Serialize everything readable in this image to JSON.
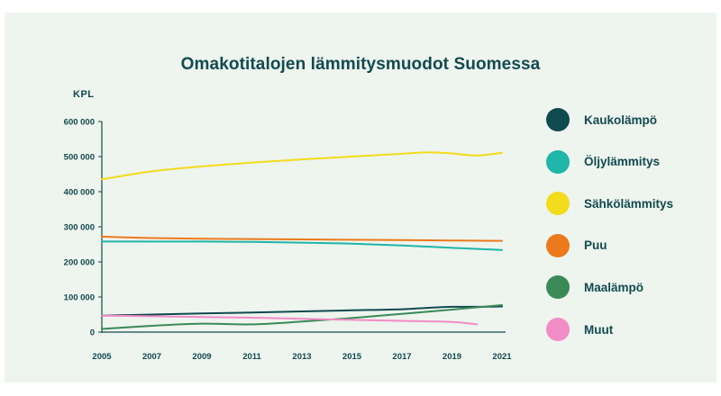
{
  "chart_data": {
    "type": "line",
    "title": "Omakotitalojen lämmitysmuodot Suomessa",
    "xlabel": "",
    "ylabel": "KPL",
    "xlim": [
      2005,
      2021
    ],
    "ylim": [
      0,
      600000
    ],
    "x_ticks": [
      "2005",
      "2007",
      "2009",
      "2011",
      "2013",
      "2015",
      "2017",
      "2019",
      "2021"
    ],
    "y_ticks": [
      "0",
      "100 000",
      "200 000",
      "300 000",
      "400 000",
      "500 000",
      "600 000"
    ],
    "y_tick_values": [
      0,
      100000,
      200000,
      300000,
      400000,
      500000,
      600000
    ],
    "grid": false,
    "legend_position": "right",
    "series": [
      {
        "name": "Kaukolämpö",
        "color": "#0f4a4f",
        "x": [
          2005,
          2007,
          2009,
          2011,
          2013,
          2015,
          2017,
          2018,
          2019,
          2020,
          2021
        ],
        "y": [
          47000,
          50000,
          53000,
          56000,
          59000,
          62000,
          65000,
          69000,
          72000,
          72000,
          73000
        ]
      },
      {
        "name": "Öljylämmitys",
        "color": "#1fb5a8",
        "x": [
          2005,
          2007,
          2009,
          2011,
          2013,
          2015,
          2017,
          2019,
          2021
        ],
        "y": [
          258000,
          258000,
          258000,
          257000,
          255000,
          252000,
          247000,
          240000,
          234000
        ]
      },
      {
        "name": "Sähkölämmitys",
        "color": "#f2dc1b",
        "x": [
          2005,
          2007,
          2009,
          2011,
          2013,
          2015,
          2017,
          2018,
          2019,
          2020,
          2021
        ],
        "y": [
          435000,
          458000,
          472000,
          483000,
          492000,
          500000,
          508000,
          512000,
          509000,
          503000,
          511000
        ]
      },
      {
        "name": "Puu",
        "color": "#ec7a1c",
        "x": [
          2005,
          2007,
          2009,
          2011,
          2013,
          2015,
          2017,
          2019,
          2021
        ],
        "y": [
          272000,
          268000,
          266000,
          265000,
          264000,
          263000,
          262000,
          261000,
          260000
        ]
      },
      {
        "name": "Maalämpö",
        "color": "#3a8a58",
        "x": [
          2005,
          2007,
          2009,
          2011,
          2013,
          2015,
          2017,
          2019,
          2021
        ],
        "y": [
          9000,
          18000,
          24000,
          22000,
          30000,
          40000,
          52000,
          64000,
          77000
        ]
      },
      {
        "name": "Muut",
        "color": "#f28cc6",
        "x": [
          2005,
          2007,
          2009,
          2011,
          2013,
          2015,
          2017,
          2019,
          2020
        ],
        "y": [
          47000,
          45000,
          43000,
          41000,
          38000,
          35000,
          32000,
          29000,
          22000
        ]
      }
    ]
  }
}
